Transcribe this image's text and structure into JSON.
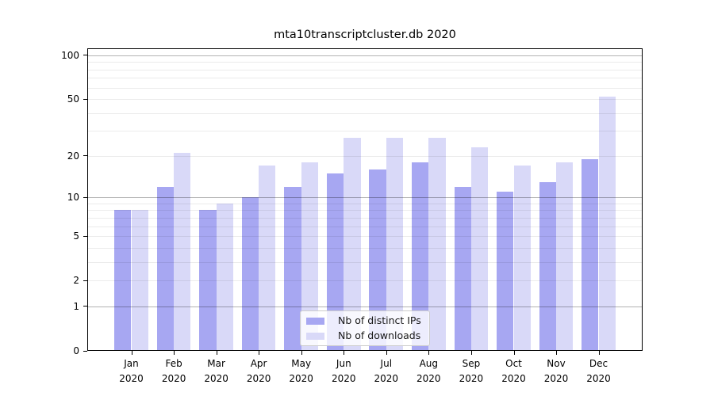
{
  "chart_data": {
    "type": "bar",
    "title": "mta10transcriptcluster.db 2020",
    "categories": [
      "Jan",
      "Feb",
      "Mar",
      "Apr",
      "May",
      "Jun",
      "Jul",
      "Aug",
      "Sep",
      "Oct",
      "Nov",
      "Dec"
    ],
    "year_label": "2020",
    "series": [
      {
        "name": "Nb of distinct IPs",
        "color": "#a7a7f2",
        "values": [
          8,
          12,
          8,
          10,
          12,
          15,
          16,
          18,
          12,
          11,
          13,
          19
        ]
      },
      {
        "name": "Nb of downloads",
        "color": "#d9d9f8",
        "values": [
          8,
          21,
          9,
          17,
          18,
          27,
          27,
          27,
          23,
          17,
          18,
          52
        ]
      }
    ],
    "y_scale": "log1p",
    "ylim": [
      0,
      112
    ],
    "y_ticks": [
      0,
      1,
      2,
      5,
      10,
      20,
      50,
      100
    ],
    "y_major_gridlines": [
      1,
      10,
      100
    ],
    "y_minor_gridlines": [
      2,
      3,
      4,
      5,
      6,
      7,
      8,
      9,
      20,
      30,
      40,
      50,
      60,
      70,
      80,
      90
    ],
    "grid": true,
    "legend_position": "lower center"
  }
}
